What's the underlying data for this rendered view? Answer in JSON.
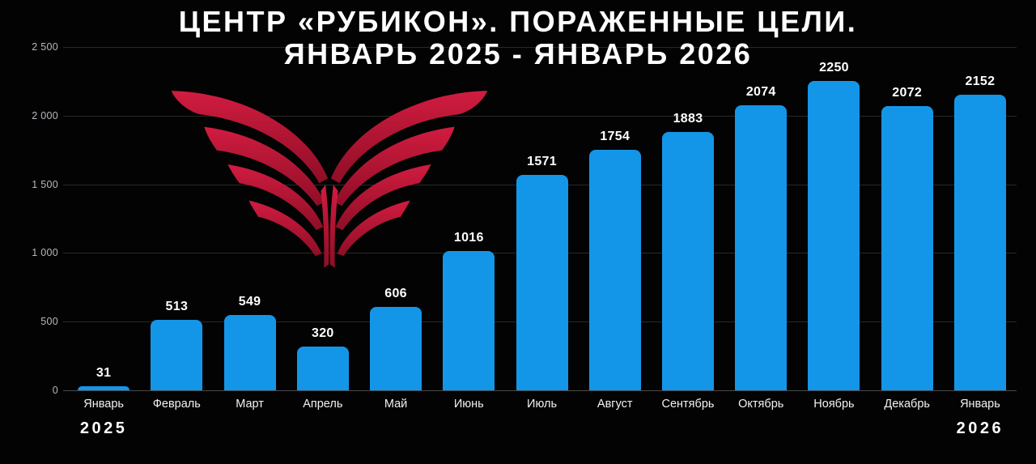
{
  "title": {
    "line1": "ЦЕНТР «РУБИКОН». ПОРАЖЕННЫЕ ЦЕЛИ.",
    "line2": "ЯНВАРЬ 2025 - ЯНВАРЬ 2026"
  },
  "chart_data": {
    "type": "bar",
    "title": "ЦЕНТР «РУБИКОН». ПОРАЖЕННЫЕ ЦЕЛИ. ЯНВАРЬ 2025 - ЯНВАРЬ 2026",
    "categories": [
      "Январь",
      "Февраль",
      "Март",
      "Апрель",
      "Май",
      "Июнь",
      "Июль",
      "Август",
      "Сентябрь",
      "Октябрь",
      "Ноябрь",
      "Декабрь",
      "Январь"
    ],
    "values": [
      31,
      513,
      549,
      320,
      606,
      1016,
      1571,
      1754,
      1883,
      2074,
      2250,
      2072,
      2152
    ],
    "xlabel": "",
    "ylabel": "",
    "ylim": [
      0,
      2500
    ],
    "yticks": [
      0,
      500,
      1000,
      1500,
      2000,
      2500
    ],
    "ytick_labels": [
      "0",
      "500",
      "1 000",
      "1 500",
      "2 000",
      "2 500"
    ],
    "grid": true,
    "legend": "none",
    "bar_color": "#1496E8",
    "background_color": "#030303",
    "value_label_color": "#FFFFFF",
    "tick_label_color": "#B4BAC0"
  },
  "footer": {
    "year_left": "2025",
    "year_right": "2026"
  },
  "logo": {
    "name": "rubicon-wings-logo",
    "color_top": "#D11C40",
    "color_bottom": "#8E0E26"
  }
}
